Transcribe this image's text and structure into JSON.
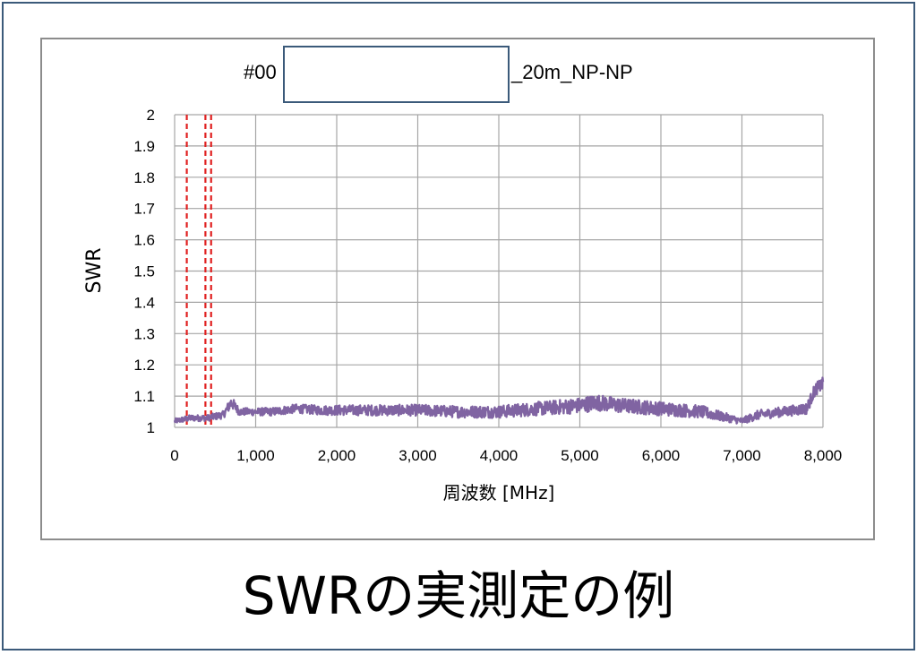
{
  "caption": "SWRの実測定の例",
  "chart_data": {
    "type": "line",
    "title_prefix": "#00",
    "title_suffix": "_20m_NP-NP",
    "xlabel": "周波数 [MHz]",
    "ylabel": "SWR",
    "xlim": [
      0,
      8000
    ],
    "ylim": [
      1,
      2
    ],
    "x_ticks": [
      0,
      1000,
      2000,
      3000,
      4000,
      5000,
      6000,
      7000,
      8000
    ],
    "x_tick_labels": [
      "0",
      "1,000",
      "2,000",
      "3,000",
      "4,000",
      "5,000",
      "6,000",
      "7,000",
      "8,000"
    ],
    "y_ticks": [
      1,
      1.1,
      1.2,
      1.3,
      1.4,
      1.5,
      1.6,
      1.7,
      1.8,
      1.9,
      2
    ],
    "y_tick_labels": [
      "1",
      "1.1",
      "1.2",
      "1.3",
      "1.4",
      "1.5",
      "1.6",
      "1.7",
      "1.8",
      "1.9",
      "2"
    ],
    "grid": true,
    "reference_lines_x": [
      150,
      380,
      450
    ],
    "reference_line_color": "#e02020",
    "series": [
      {
        "color": "#8064a2",
        "x": [
          0,
          200,
          400,
          600,
          700,
          800,
          1000,
          1200,
          1500,
          1800,
          2000,
          2500,
          3000,
          3500,
          4000,
          4500,
          5000,
          5200,
          5500,
          6000,
          6500,
          7000,
          7200,
          7500,
          7800,
          7900,
          8000
        ],
        "y": [
          1.02,
          1.03,
          1.03,
          1.04,
          1.08,
          1.05,
          1.05,
          1.05,
          1.06,
          1.055,
          1.055,
          1.055,
          1.055,
          1.05,
          1.05,
          1.06,
          1.07,
          1.08,
          1.07,
          1.06,
          1.05,
          1.02,
          1.04,
          1.05,
          1.06,
          1.12,
          1.14
        ],
        "noise": [
          0.008,
          0.01,
          0.01,
          0.012,
          0.02,
          0.012,
          0.012,
          0.013,
          0.014,
          0.015,
          0.016,
          0.017,
          0.018,
          0.019,
          0.02,
          0.022,
          0.025,
          0.026,
          0.024,
          0.022,
          0.02,
          0.01,
          0.015,
          0.016,
          0.018,
          0.02,
          0.02
        ]
      }
    ]
  }
}
